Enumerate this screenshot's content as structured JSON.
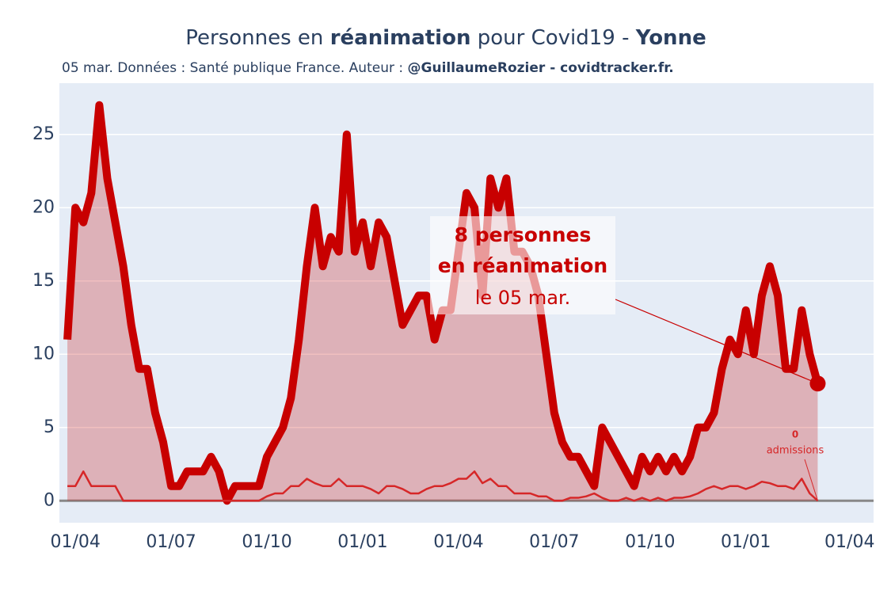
{
  "chart_data": {
    "type": "line",
    "title": [
      "Personnes en ",
      "réanimation",
      " pour Covid19 - ",
      "Yonne"
    ],
    "subtitle": [
      "05 mar. Données : Santé publique France. Auteur : ",
      "@GuillaumeRozier - covidtracker.fr."
    ],
    "x": [
      "15/03",
      "22/03",
      "01/04",
      "08/04",
      "15/04",
      "22/04",
      "01/05",
      "08/05",
      "15/05",
      "22/05",
      "01/06",
      "08/06",
      "15/06",
      "22/06",
      "01/07",
      "08/07",
      "15/07",
      "22/07",
      "01/08",
      "08/08",
      "15/08",
      "22/08",
      "01/09",
      "08/09",
      "15/09",
      "22/09",
      "01/10",
      "08/10",
      "15/10",
      "22/10",
      "01/11",
      "08/11",
      "15/11",
      "22/11",
      "01/12",
      "08/12",
      "15/12",
      "22/12",
      "01/01",
      "08/01",
      "15/01",
      "22/01",
      "01/02",
      "08/02",
      "15/02",
      "22/02",
      "01/03",
      "08/03",
      "15/03",
      "22/03",
      "01/04",
      "08/04",
      "15/04",
      "22/04",
      "01/05",
      "08/05",
      "15/05",
      "22/05",
      "01/06",
      "08/06",
      "15/06",
      "22/06",
      "01/07",
      "08/07",
      "15/07",
      "22/07",
      "01/08",
      "08/08",
      "15/08",
      "22/08",
      "01/09",
      "08/09",
      "15/09",
      "22/09",
      "01/10",
      "08/10",
      "15/10",
      "22/10",
      "01/11",
      "08/11",
      "15/11",
      "22/11",
      "01/12",
      "08/12",
      "15/12",
      "22/12",
      "01/01",
      "08/01",
      "15/01",
      "22/01",
      "01/02",
      "08/02",
      "15/02",
      "22/02",
      "01/03",
      "05/03",
      "08/03",
      "15/03",
      "22/03",
      "01/04",
      "08/04",
      "15/04",
      "22/04"
    ],
    "series": [
      {
        "color": "#c80000",
        "values": [
          null,
          11,
          20,
          19,
          21,
          27,
          22,
          19,
          16,
          12,
          9,
          9,
          6,
          4,
          1,
          1,
          2,
          2,
          2,
          3,
          2,
          0,
          1,
          1,
          1,
          1,
          3,
          4,
          5,
          7,
          11,
          16,
          20,
          16,
          18,
          17,
          25,
          17,
          19,
          16,
          19,
          18,
          15,
          12,
          13,
          14,
          14,
          11,
          13,
          13,
          17,
          21,
          20,
          14,
          22,
          20,
          22,
          17,
          17,
          16,
          14,
          10,
          6,
          4,
          3,
          3,
          2,
          1,
          5,
          4,
          3,
          2,
          1,
          3,
          2,
          3,
          2,
          3,
          2,
          3,
          5,
          5,
          6,
          9,
          11,
          10,
          13,
          10,
          14,
          16,
          14,
          9,
          9,
          13,
          10,
          8,
          null,
          null,
          null,
          null,
          null,
          null,
          null
        ]
      },
      {
        "color": "#d62728",
        "values": [
          null,
          1,
          1,
          2,
          1,
          1,
          1,
          1,
          0,
          0,
          0,
          0,
          0,
          0,
          0,
          0,
          0,
          0,
          0,
          0,
          0,
          0,
          0,
          0,
          0,
          0,
          0.3,
          0.5,
          0.5,
          1,
          1,
          1.5,
          1.2,
          1,
          1,
          1.5,
          1,
          1,
          1,
          0.8,
          0.5,
          1,
          1,
          0.8,
          0.5,
          0.5,
          0.8,
          1,
          1,
          1.2,
          1.5,
          1.5,
          2,
          1.2,
          1.5,
          1,
          1,
          0.5,
          0.5,
          0.5,
          0.3,
          0.3,
          0,
          0,
          0.2,
          0.2,
          0.3,
          0.5,
          0.2,
          0,
          0,
          0.2,
          0,
          0.2,
          0,
          0.2,
          0,
          0.2,
          0.2,
          0.3,
          0.5,
          0.8,
          1,
          0.8,
          1,
          1,
          0.8,
          1,
          1.3,
          1.2,
          1,
          1,
          0.8,
          1.5,
          0.5,
          0,
          null,
          null,
          null,
          null,
          null,
          null,
          null
        ]
      }
    ],
    "xticks": [
      "01/04",
      "01/07",
      "01/10",
      "01/01",
      "01/04",
      "01/07",
      "01/10",
      "01/01",
      "01/04"
    ],
    "ylim": [
      -1.5,
      28.5
    ],
    "yticks": [
      0,
      5,
      10,
      15,
      20,
      25
    ],
    "grid": true,
    "annotations": [
      {
        "lines": [
          "8 personnes",
          "en réanimation",
          "le 05 mar."
        ]
      },
      {
        "lines": [
          "0",
          "admissions"
        ]
      }
    ]
  }
}
